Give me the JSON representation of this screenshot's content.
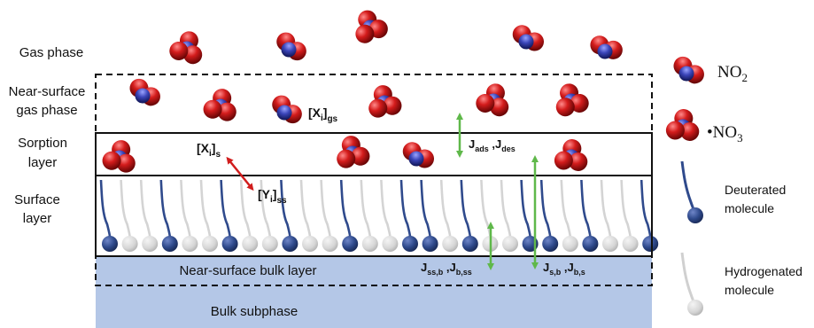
{
  "layers": {
    "gas_phase": "Gas phase",
    "near_surface_gas_line1": "Near-surface",
    "near_surface_gas_line2": "gas phase",
    "sorption_line1": "Sorption",
    "sorption_line2": "layer",
    "surface_line1": "Surface",
    "surface_line2": "layer",
    "near_surface_bulk": "Near-surface bulk layer",
    "bulk_subphase": "Bulk subphase"
  },
  "concentrations": {
    "xi_gs": {
      "main": "[X",
      "sub1": "i",
      "close": "]",
      "sub2": "gs"
    },
    "xi_s": {
      "main": "[X",
      "sub1": "i",
      "close": "]",
      "sub2": "s"
    },
    "yi_ss": {
      "main": "[Y",
      "sub1": "i",
      "close": "]",
      "sub2": "ss"
    }
  },
  "fluxes": {
    "ads_des": {
      "j1": "J",
      "s1": "ads",
      "sep": " ,",
      "j2": "J",
      "s2": "des"
    },
    "ss_b": {
      "j1": "J",
      "s1": "ss,b",
      "sep": " ,",
      "j2": "J",
      "s2": "b,ss"
    },
    "s_b": {
      "j1": "J",
      "s1": "s,b",
      "sep": " ,",
      "j2": "J",
      "s2": "b,s"
    }
  },
  "legend": {
    "no2": {
      "base": "NO",
      "sub": "2"
    },
    "no3": {
      "dot": "•",
      "base": "NO",
      "sub": "3"
    },
    "deuterated_line1": "Deuterated",
    "deuterated_line2": "molecule",
    "hydrogenated_line1": "Hydrogenated",
    "hydrogenated_line2": "molecule"
  },
  "colors": {
    "deuterated": "#2f4a8c",
    "hydrogenated": "#d9d9d9",
    "bulk": "#b4c7e7",
    "oxygen": "#c01a1a",
    "nitrogen": "#3a44b8",
    "arrow_green": "#5fb84a",
    "arrow_red": "#d11d1d"
  }
}
